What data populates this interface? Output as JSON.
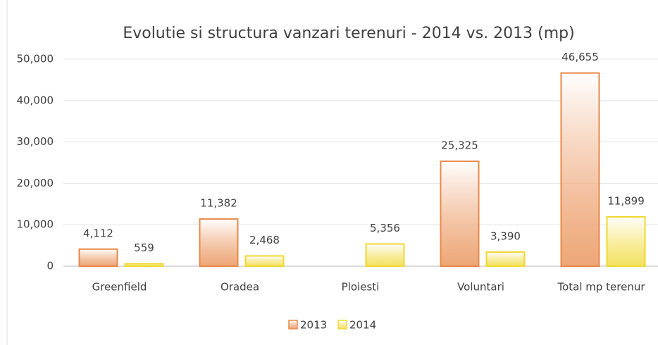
{
  "chart_data": {
    "type": "bar",
    "title": "Evolutie si structura vanzari terenuri - 2014 vs. 2013 (mp)",
    "categories": [
      "Greenfield",
      "Oradea",
      "Ploiesti",
      "Voluntari",
      "Total mp terenur"
    ],
    "series": [
      {
        "name": "2013",
        "color": "#e8894a",
        "values": [
          4112,
          11382,
          null,
          25325,
          46655
        ],
        "value_labels": [
          "4,112",
          "11,382",
          null,
          "25,325",
          "46,655"
        ]
      },
      {
        "name": "2014",
        "color": "#f0d830",
        "values": [
          559,
          2468,
          5356,
          3390,
          11899
        ],
        "value_labels": [
          "559",
          "2,468",
          "5,356",
          "3,390",
          "11,899"
        ]
      }
    ],
    "ylim": [
      0,
      50000
    ],
    "yticks": [
      0,
      {
        "value": 10000,
        "label": "10,000"
      },
      {
        "value": 20000,
        "label": "20,000"
      },
      {
        "value": 30000,
        "label": "30,000"
      },
      {
        "value": 40000,
        "label": "40,000"
      },
      {
        "value": 50000,
        "label": "50,000"
      }
    ],
    "grid": true,
    "legend": "bottom"
  }
}
